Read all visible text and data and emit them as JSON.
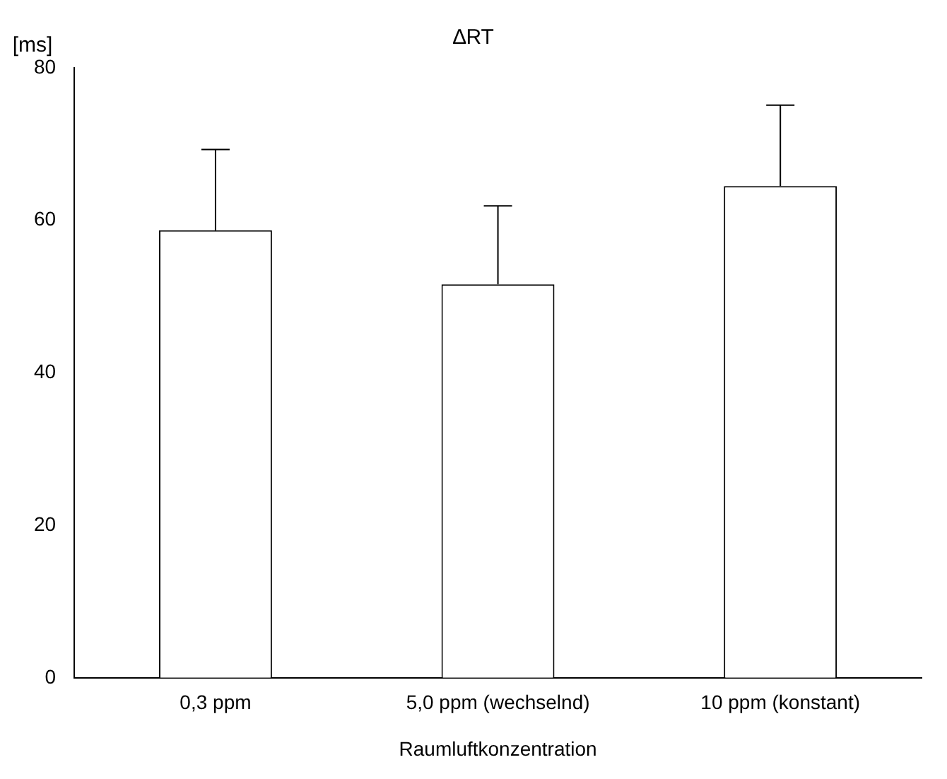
{
  "chart_data": {
    "type": "bar",
    "title": "∆RT",
    "ylabel": "[ms]",
    "xlabel": "Raumluftkonzentration",
    "categories": [
      "0,3 ppm",
      "5,0 ppm (wechselnd)",
      "10 ppm (konstant)"
    ],
    "values": [
      58.7,
      51.6,
      64.5
    ],
    "errors": [
      [
        58.7,
        69.3
      ],
      [
        51.6,
        61.9
      ],
      [
        64.5,
        75.1
      ]
    ],
    "color": "#ffffff",
    "ylim": [
      0,
      80
    ],
    "yticks": [
      0,
      20,
      40,
      60,
      80
    ],
    "grid": false,
    "legend": false
  }
}
